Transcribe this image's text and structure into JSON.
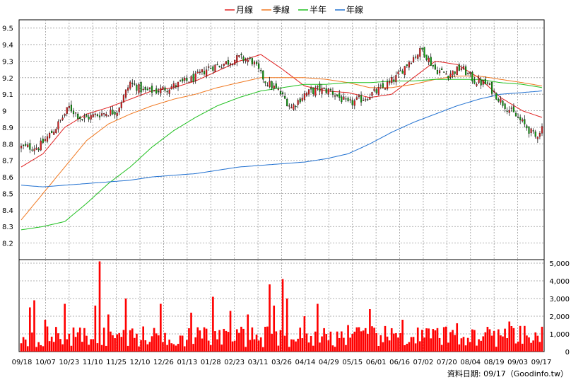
{
  "chart_data": {
    "type": "candlestick-with-volume",
    "legend": [
      {
        "name": "月線",
        "color": "#e02020"
      },
      {
        "name": "季線",
        "color": "#f07820"
      },
      {
        "name": "半年",
        "color": "#20c020"
      },
      {
        "name": "年線",
        "color": "#2070d0"
      }
    ],
    "price_axis": {
      "ylim": [
        8.1,
        9.55
      ],
      "ticks": [
        "9.5",
        "9.4",
        "9.3",
        "9.2",
        "9.1",
        "9",
        "8.9",
        "8.8",
        "8.7",
        "8.6",
        "8.5",
        "8.4",
        "8.3",
        "8.2"
      ],
      "tick_values": [
        9.5,
        9.4,
        9.3,
        9.2,
        9.1,
        9.0,
        8.9,
        8.8,
        8.7,
        8.6,
        8.5,
        8.4,
        8.3,
        8.2
      ]
    },
    "volume_axis": {
      "ylim": [
        0,
        5200
      ],
      "ticks": [
        "5,000",
        "4,000",
        "3,000",
        "2,000",
        "1,000",
        "0"
      ],
      "tick_values": [
        5000,
        4000,
        3000,
        2000,
        1000,
        0
      ]
    },
    "x_labels": [
      "09/18",
      "10/07",
      "10/23",
      "11/10",
      "11/25",
      "12/10",
      "12/26",
      "01/13",
      "01/28",
      "02/23",
      "03/11",
      "03/26",
      "04/14",
      "04/29",
      "05/15",
      "06/01",
      "06/16",
      "07/02",
      "07/20",
      "08/04",
      "08/19",
      "09/03",
      "09/17"
    ],
    "n_days": 240,
    "ma_monthly": [
      [
        0,
        8.66
      ],
      [
        10,
        8.74
      ],
      [
        20,
        8.9
      ],
      [
        30,
        8.98
      ],
      [
        40,
        9.02
      ],
      [
        50,
        9.07
      ],
      [
        60,
        9.12
      ],
      [
        70,
        9.14
      ],
      [
        80,
        9.18
      ],
      [
        90,
        9.24
      ],
      [
        100,
        9.3
      ],
      [
        110,
        9.34
      ],
      [
        120,
        9.25
      ],
      [
        130,
        9.15
      ],
      [
        140,
        9.12
      ],
      [
        150,
        9.11
      ],
      [
        160,
        9.08
      ],
      [
        170,
        9.1
      ],
      [
        180,
        9.2
      ],
      [
        190,
        9.3
      ],
      [
        200,
        9.28
      ],
      [
        210,
        9.2
      ],
      [
        220,
        9.08
      ],
      [
        230,
        9.0
      ],
      [
        239,
        8.96
      ]
    ],
    "ma_quarterly": [
      [
        0,
        8.34
      ],
      [
        10,
        8.5
      ],
      [
        20,
        8.66
      ],
      [
        30,
        8.82
      ],
      [
        40,
        8.92
      ],
      [
        50,
        8.98
      ],
      [
        60,
        9.03
      ],
      [
        70,
        9.07
      ],
      [
        80,
        9.1
      ],
      [
        90,
        9.14
      ],
      [
        100,
        9.17
      ],
      [
        110,
        9.2
      ],
      [
        120,
        9.2
      ],
      [
        130,
        9.2
      ],
      [
        140,
        9.19
      ],
      [
        150,
        9.17
      ],
      [
        160,
        9.14
      ],
      [
        170,
        9.14
      ],
      [
        180,
        9.16
      ],
      [
        190,
        9.19
      ],
      [
        200,
        9.21
      ],
      [
        210,
        9.21
      ],
      [
        220,
        9.19
      ],
      [
        230,
        9.17
      ],
      [
        239,
        9.15
      ]
    ],
    "ma_halfyear": [
      [
        0,
        8.28
      ],
      [
        10,
        8.3
      ],
      [
        20,
        8.33
      ],
      [
        30,
        8.44
      ],
      [
        40,
        8.56
      ],
      [
        50,
        8.66
      ],
      [
        60,
        8.78
      ],
      [
        70,
        8.88
      ],
      [
        80,
        8.96
      ],
      [
        90,
        9.03
      ],
      [
        100,
        9.08
      ],
      [
        110,
        9.12
      ],
      [
        120,
        9.14
      ],
      [
        130,
        9.16
      ],
      [
        140,
        9.16
      ],
      [
        150,
        9.17
      ],
      [
        160,
        9.17
      ],
      [
        170,
        9.18
      ],
      [
        180,
        9.18
      ],
      [
        190,
        9.19
      ],
      [
        200,
        9.19
      ],
      [
        210,
        9.19
      ],
      [
        220,
        9.17
      ],
      [
        230,
        9.16
      ],
      [
        239,
        9.14
      ]
    ],
    "ma_yearly": [
      [
        0,
        8.55
      ],
      [
        10,
        8.54
      ],
      [
        20,
        8.55
      ],
      [
        30,
        8.56
      ],
      [
        40,
        8.57
      ],
      [
        50,
        8.58
      ],
      [
        60,
        8.6
      ],
      [
        70,
        8.61
      ],
      [
        80,
        8.62
      ],
      [
        90,
        8.64
      ],
      [
        100,
        8.66
      ],
      [
        110,
        8.67
      ],
      [
        120,
        8.68
      ],
      [
        130,
        8.69
      ],
      [
        140,
        8.71
      ],
      [
        150,
        8.74
      ],
      [
        160,
        8.8
      ],
      [
        170,
        8.87
      ],
      [
        180,
        8.93
      ],
      [
        190,
        8.98
      ],
      [
        200,
        9.03
      ],
      [
        210,
        9.07
      ],
      [
        220,
        9.1
      ],
      [
        230,
        9.11
      ],
      [
        239,
        9.12
      ]
    ],
    "close_path": [
      [
        0,
        8.78
      ],
      [
        8,
        8.78
      ],
      [
        16,
        8.9
      ],
      [
        22,
        9.02
      ],
      [
        28,
        8.95
      ],
      [
        36,
        8.98
      ],
      [
        44,
        9.0
      ],
      [
        50,
        9.17
      ],
      [
        56,
        9.12
      ],
      [
        62,
        9.12
      ],
      [
        70,
        9.15
      ],
      [
        80,
        9.2
      ],
      [
        86,
        9.26
      ],
      [
        92,
        9.28
      ],
      [
        100,
        9.32
      ],
      [
        106,
        9.3
      ],
      [
        112,
        9.18
      ],
      [
        118,
        9.12
      ],
      [
        124,
        9.02
      ],
      [
        130,
        9.1
      ],
      [
        136,
        9.13
      ],
      [
        142,
        9.12
      ],
      [
        150,
        9.04
      ],
      [
        158,
        9.08
      ],
      [
        166,
        9.14
      ],
      [
        172,
        9.2
      ],
      [
        178,
        9.3
      ],
      [
        184,
        9.37
      ],
      [
        190,
        9.25
      ],
      [
        196,
        9.22
      ],
      [
        202,
        9.26
      ],
      [
        208,
        9.18
      ],
      [
        214,
        9.16
      ],
      [
        220,
        9.06
      ],
      [
        226,
        8.98
      ],
      [
        232,
        8.9
      ],
      [
        236,
        8.84
      ],
      [
        239,
        8.9
      ]
    ],
    "volume_spikes": [
      [
        4,
        2500
      ],
      [
        6,
        2900
      ],
      [
        11,
        1800
      ],
      [
        20,
        2700
      ],
      [
        34,
        2600
      ],
      [
        36,
        5100
      ],
      [
        40,
        2100
      ],
      [
        48,
        3000
      ],
      [
        64,
        2700
      ],
      [
        78,
        2200
      ],
      [
        88,
        3100
      ],
      [
        96,
        2300
      ],
      [
        104,
        2100
      ],
      [
        114,
        3800
      ],
      [
        116,
        2600
      ],
      [
        120,
        4100
      ],
      [
        122,
        3000
      ],
      [
        130,
        2000
      ],
      [
        136,
        2700
      ],
      [
        150,
        1500
      ],
      [
        160,
        2400
      ],
      [
        175,
        1800
      ],
      [
        190,
        1200
      ],
      [
        200,
        1600
      ],
      [
        214,
        1400
      ],
      [
        224,
        1700
      ]
    ],
    "footer": "資料日期: 09/17（Goodinfo.tw）"
  }
}
